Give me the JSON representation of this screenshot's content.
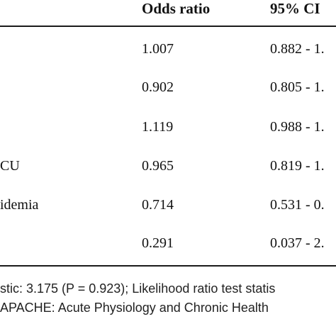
{
  "table": {
    "headers": {
      "odds_ratio": "Odds ratio",
      "ci": "95% CI"
    },
    "rows": [
      {
        "label": "",
        "odds": "1.007",
        "ci": "0.882 - 1."
      },
      {
        "label": "",
        "odds": "0.902",
        "ci": "0.805 - 1."
      },
      {
        "label": "",
        "odds": "1.119",
        "ci": "0.988 - 1."
      },
      {
        "label": "CU",
        "odds": "0.965",
        "ci": "0.819 - 1."
      },
      {
        "label": "idemia",
        "odds": "0.714",
        "ci": "0.531 - 0."
      },
      {
        "label": "",
        "odds": "0.291",
        "ci": "0.037 - 2."
      }
    ]
  },
  "footnote": {
    "line1": "stic: 3.175 (P = 0.923); Likelihood ratio test statis",
    "line2": "APACHE: Acute Physiology and Chronic Health"
  }
}
